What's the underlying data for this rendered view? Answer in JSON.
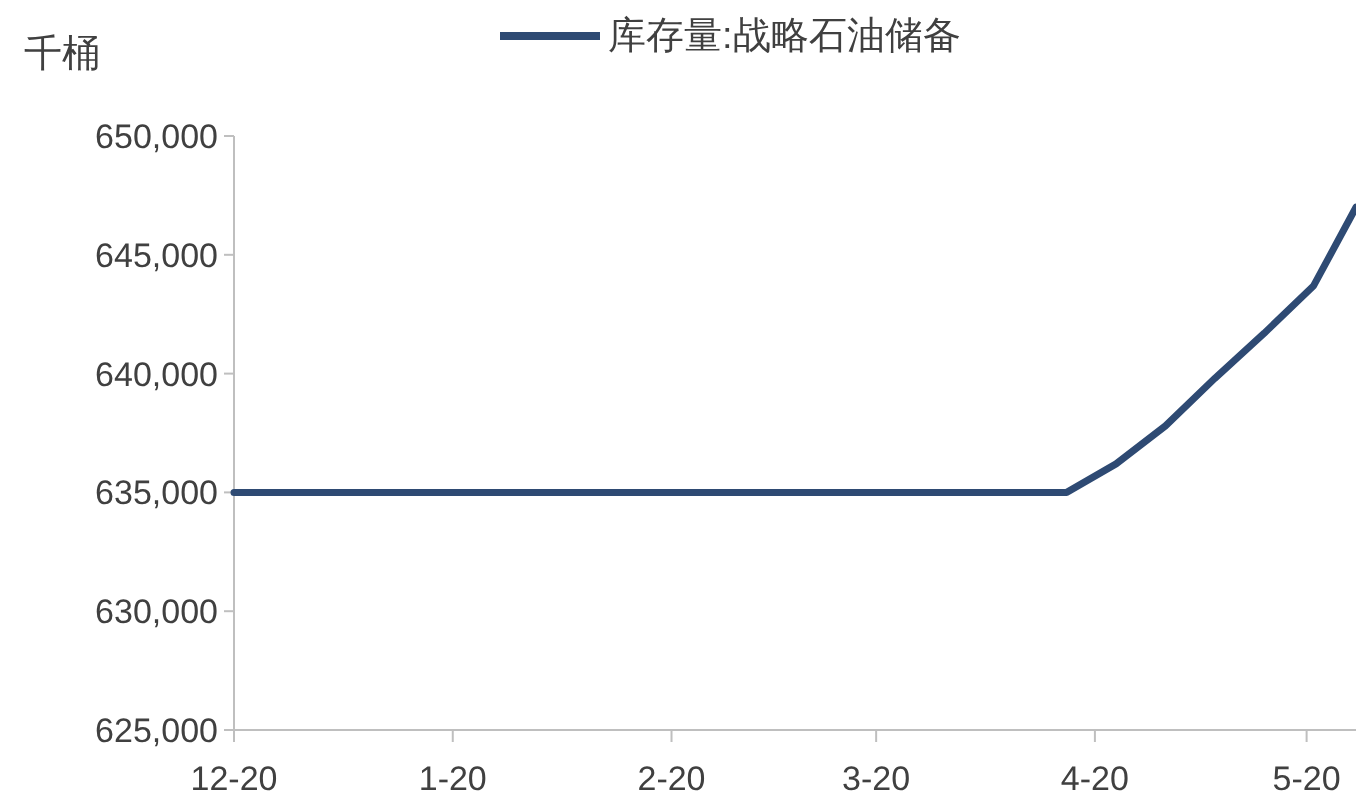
{
  "chart_data": {
    "type": "line",
    "ylabel": "千桶",
    "legend": "top",
    "x": [
      "2019-12-01",
      "2020-03-28",
      "2020-04-04",
      "2020-04-11",
      "2020-04-18",
      "2020-04-25",
      "2020-05-02",
      "2020-05-08"
    ],
    "series": [
      {
        "name": "库存量:战略石油储备",
        "color": "#2e4a73",
        "values": [
          635000,
          635000,
          636200,
          637800,
          639800,
          641700,
          643700,
          647000
        ]
      }
    ],
    "xlim": [
      "2019-12-01",
      "2020-05-08"
    ],
    "xticks": [
      {
        "value": "2019-12-01",
        "label": "12-20"
      },
      {
        "value": "2020-01-01",
        "label": "1-20"
      },
      {
        "value": "2020-02-01",
        "label": "2-20"
      },
      {
        "value": "2020-03-01",
        "label": "3-20"
      },
      {
        "value": "2020-04-01",
        "label": "4-20"
      },
      {
        "value": "2020-05-01",
        "label": "5-20"
      }
    ],
    "ylim": [
      625000,
      650000
    ],
    "yticks": [
      {
        "value": 625000,
        "label": "625,000"
      },
      {
        "value": 630000,
        "label": "630,000"
      },
      {
        "value": 635000,
        "label": "635,000"
      },
      {
        "value": 640000,
        "label": "640,000"
      },
      {
        "value": 645000,
        "label": "645,000"
      },
      {
        "value": 650000,
        "label": "650,000"
      }
    ],
    "grid": false,
    "marker": "none",
    "line_style": "solid"
  }
}
